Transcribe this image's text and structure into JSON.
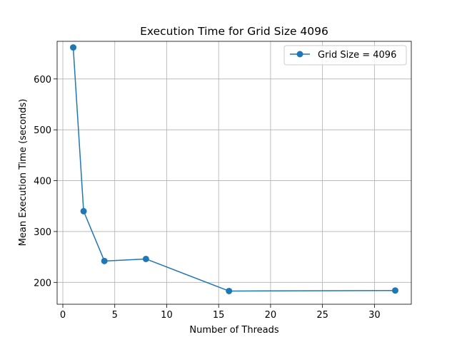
{
  "chart_data": {
    "type": "line",
    "title": "Execution Time for Grid Size 4096",
    "xlabel": "Number of Threads",
    "ylabel": "Mean Execution Time (seconds)",
    "xlim": [
      -0.55,
      33.55
    ],
    "ylim": [
      157,
      674
    ],
    "xticks": [
      0,
      5,
      10,
      15,
      20,
      25,
      30
    ],
    "yticks": [
      200,
      300,
      400,
      500,
      600
    ],
    "grid": true,
    "legend_position": "top-right",
    "series": [
      {
        "name": "Grid Size = 4096",
        "color": "#1f77b4",
        "marker": "circle",
        "x": [
          1,
          2,
          4,
          8,
          16,
          32
        ],
        "y": [
          662,
          340,
          242,
          246,
          183,
          184
        ]
      }
    ]
  }
}
